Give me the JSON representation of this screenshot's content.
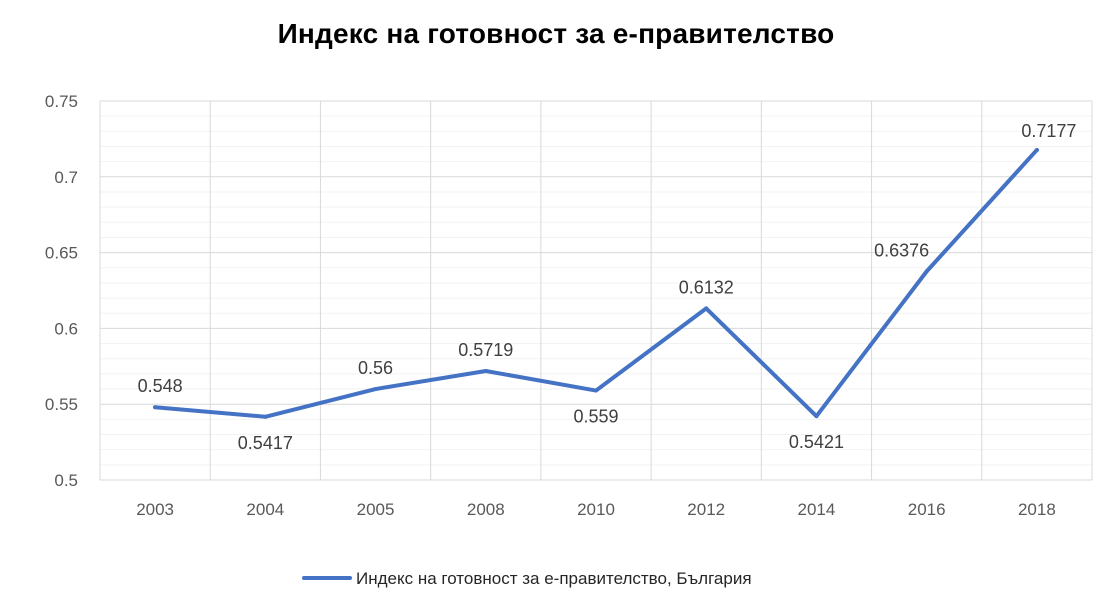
{
  "chart_data": {
    "type": "line",
    "title": "Индекс на готовност за е-правителство",
    "categories": [
      "2003",
      "2004",
      "2005",
      "2008",
      "2010",
      "2012",
      "2014",
      "2016",
      "2018"
    ],
    "series": [
      {
        "name": "Индекс на готовност за е-правителство, България",
        "values": [
          0.548,
          0.5417,
          0.56,
          0.5719,
          0.559,
          0.6132,
          0.5421,
          0.6376,
          0.7177
        ],
        "labels": [
          "0.548",
          "0.5417",
          "0.56",
          "0.5719",
          "0.559",
          "0.6132",
          "0.5421",
          "0.6376",
          "0.7177"
        ],
        "color": "#4472C4"
      }
    ],
    "ylim": [
      0.5,
      0.75
    ],
    "yticks": [
      0.5,
      0.55,
      0.6,
      0.65,
      0.7,
      0.75
    ],
    "ytick_labels": [
      "0.5",
      "0.55",
      "0.6",
      "0.65",
      "0.7",
      "0.75"
    ],
    "grid": true,
    "legend": "bottom",
    "colors": {
      "grid": "#D9D9D9",
      "line": "#4472C4"
    }
  }
}
